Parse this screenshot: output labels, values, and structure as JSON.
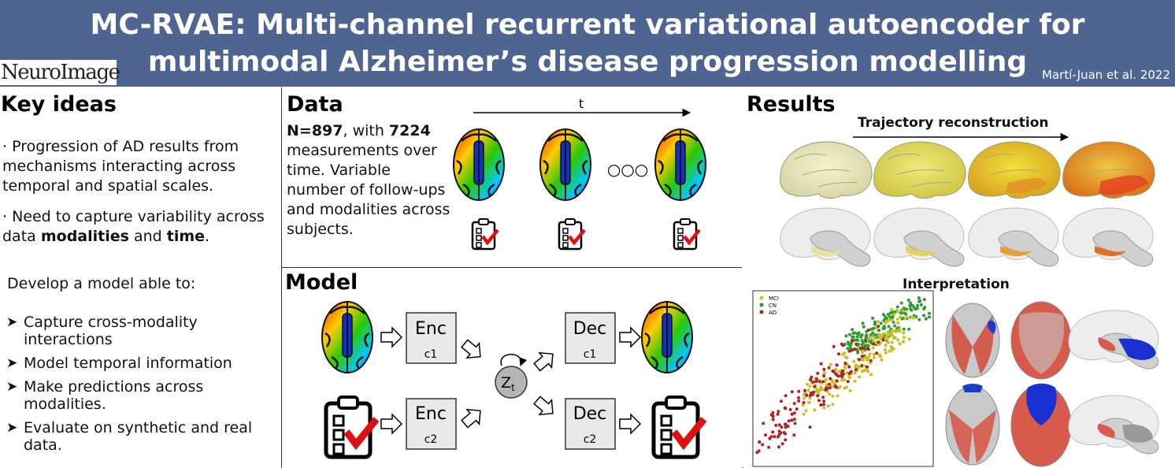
{
  "header": {
    "title_line1": "MC-RVAE: Multi-channel recurrent variational autoencoder for",
    "title_line2": "multimodal Alzheimer’s disease progression modelling",
    "journal": "NeuroImage",
    "authors": "Martí-Juan et al. 2022"
  },
  "key_ideas": {
    "heading": "Key ideas",
    "p1": "· Progression of AD results from mechanisms interacting across temporal and spatial scales.",
    "p2_pre": "· Need to capture variability across data ",
    "p2_b1": "modalities",
    "p2_mid": " and ",
    "p2_b2": "time",
    "p2_post": ".",
    "lead": "Develop a model able to:",
    "bullets": [
      "Capture cross-modality interactions",
      "Model temporal information",
      "Make predictions across modalities.",
      "Evaluate on synthetic and real data."
    ]
  },
  "data": {
    "heading": "Data",
    "n": "N=897",
    "with": ", with ",
    "meas": "7224",
    "rest1": "measurements over time.",
    "rest2": "Variable number of follow-ups and modalities",
    "rest3": "across subjects.",
    "axis_label": "t",
    "ellipsis": "○○○"
  },
  "model": {
    "heading": "Model",
    "enc": "Enc",
    "dec": "Dec",
    "c1": "c1",
    "c2": "c2",
    "z": "Z",
    "z_sub": "t"
  },
  "results": {
    "heading": "Results",
    "trajectory": "Trajectory reconstruction",
    "interpretation": "Interpretation",
    "legend": [
      "MCI",
      "CN",
      "AD"
    ],
    "legend_colors": [
      "#c8c020",
      "#2e9b2e",
      "#b22222"
    ]
  }
}
